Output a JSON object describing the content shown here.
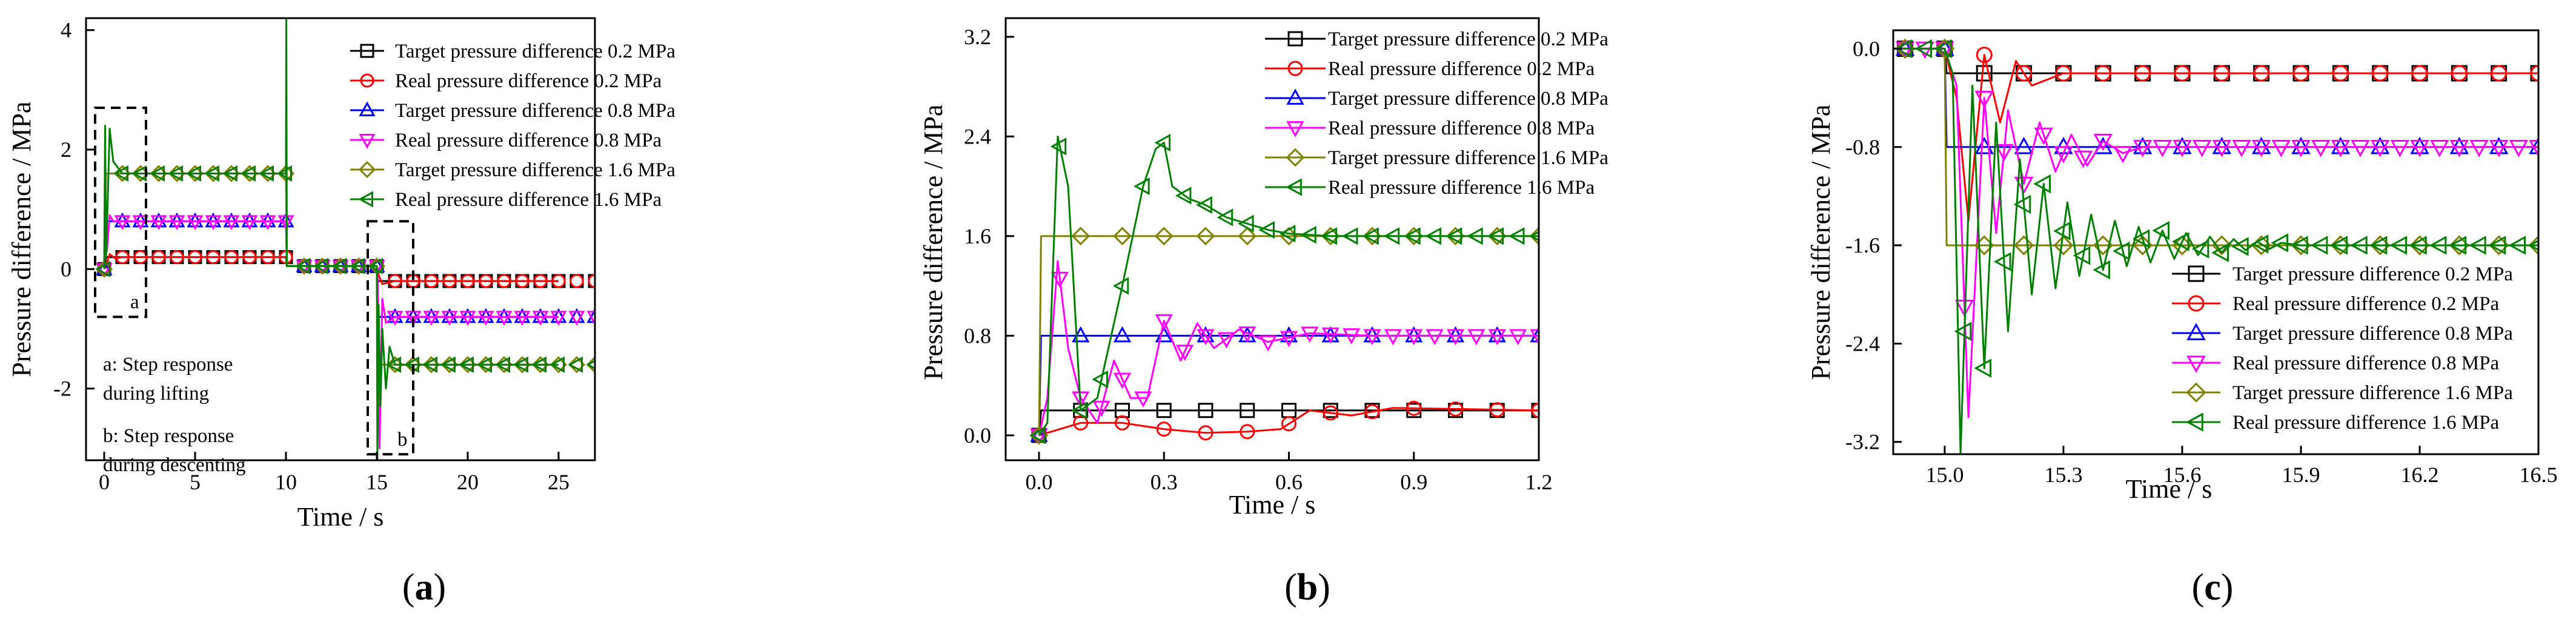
{
  "figure": {
    "panel_labels": [
      "a",
      "b",
      "c"
    ],
    "colors": {
      "target_0_2": "#000000",
      "real_0_2": "#ff0000",
      "target_0_8": "#0000ff",
      "real_0_8": "#ff00ff",
      "target_1_6": "#808000",
      "real_1_6": "#008000"
    }
  },
  "chart_data": [
    {
      "id": "a",
      "type": "line",
      "xlabel": "Time / s",
      "ylabel": "Pressure difference / MPa",
      "xlim": [
        -1,
        27
      ],
      "ylim": [
        -3.2,
        4.2
      ],
      "xticks": [
        0,
        5,
        10,
        15,
        20,
        25
      ],
      "yticks": [
        -2,
        0,
        2,
        4
      ],
      "legend": {
        "position": "top-right",
        "entries": [
          "Target pressure difference 0.2 MPa",
          "Real pressure difference 0.2 MPa",
          "Target pressure difference 0.8 MPa",
          "Real pressure difference 0.8 MPa",
          "Target pressure difference 1.6 MPa",
          "Real pressure difference 1.6 MPa"
        ]
      },
      "annotations": {
        "box_a_label": "a",
        "box_b_label": "b",
        "note_a_line1": "a: Step response",
        "note_a_line2": "during lifting",
        "note_b_line1": "b: Step response",
        "note_b_line2": "during descenting"
      },
      "regions": {
        "a": [
          -0.5,
          2.3,
          -0.8,
          2.7
        ],
        "b": [
          14.5,
          17.0,
          -3.1,
          0.8
        ]
      },
      "series": [
        {
          "name": "Target pressure difference 0.2 MPa",
          "key": "target_0_2",
          "marker": "square",
          "marker_every": 1,
          "x": [
            0,
            0.1,
            10,
            10.05,
            15,
            15.05,
            25
          ],
          "y": [
            0,
            0.2,
            0.2,
            0.05,
            0.05,
            -0.2,
            -0.2
          ]
        },
        {
          "name": "Real pressure difference 0.2 MPa",
          "key": "real_0_2",
          "marker": "circle",
          "marker_every": 1,
          "x": [
            0,
            0.1,
            0.3,
            0.6,
            1,
            10,
            10.05,
            15,
            15.1,
            15.3,
            16,
            25
          ],
          "y": [
            0,
            0.05,
            0.25,
            0.18,
            0.2,
            0.2,
            0.05,
            0.05,
            -0.1,
            -0.25,
            -0.2,
            -0.2
          ]
        },
        {
          "name": "Target pressure difference 0.8 MPa",
          "key": "target_0_8",
          "marker": "triangle-up",
          "marker_every": 1,
          "x": [
            0,
            0.1,
            10,
            10.05,
            15,
            15.05,
            25
          ],
          "y": [
            0,
            0.8,
            0.8,
            0.05,
            0.05,
            -0.8,
            -0.8
          ]
        },
        {
          "name": "Real pressure difference 0.8 MPa",
          "key": "real_0_8",
          "marker": "triangle-down",
          "marker_every": 1,
          "x": [
            0,
            0.05,
            0.15,
            0.3,
            0.5,
            10,
            10.05,
            15,
            15.05,
            15.15,
            15.3,
            15.5,
            16,
            25
          ],
          "y": [
            0,
            1.4,
            0.3,
            0.9,
            0.8,
            0.8,
            0.05,
            0.05,
            -0.2,
            -3.0,
            -0.5,
            -0.9,
            -0.8,
            -0.8
          ]
        },
        {
          "name": "Target pressure difference 1.6 MPa",
          "key": "target_1_6",
          "marker": "diamond",
          "marker_every": 1,
          "x": [
            0,
            0.1,
            10,
            10.05,
            15,
            15.05,
            25
          ],
          "y": [
            0,
            1.6,
            1.6,
            0.05,
            0.05,
            -1.6,
            -1.6
          ]
        },
        {
          "name": "Real pressure difference 1.6 MPa",
          "key": "real_1_6",
          "marker": "triangle-left",
          "marker_every": 1,
          "x": [
            0,
            0.05,
            0.1,
            0.2,
            0.3,
            0.5,
            1,
            10,
            10.02,
            10.05,
            15,
            15.03,
            15.1,
            15.2,
            15.3,
            15.5,
            15.7,
            16,
            25
          ],
          "y": [
            0,
            2.4,
            0.2,
            1.2,
            2.35,
            1.8,
            1.6,
            1.6,
            4.2,
            0.05,
            0.05,
            -3.2,
            -0.6,
            -2.3,
            -1.0,
            -2.0,
            -1.3,
            -1.6,
            -1.6
          ]
        }
      ]
    },
    {
      "id": "b",
      "type": "line",
      "xlabel": "Time / s",
      "ylabel": "Pressure difference / MPa",
      "xlim": [
        -0.08,
        1.2
      ],
      "ylim": [
        -0.2,
        3.35
      ],
      "xticks": [
        0.0,
        0.3,
        0.6,
        0.9,
        1.2
      ],
      "xticklabels": [
        "0.0",
        "0.3",
        "0.6",
        "0.9",
        "1.2"
      ],
      "yticks": [
        0.0,
        0.8,
        1.6,
        2.4,
        3.2
      ],
      "yticklabels": [
        "0.0",
        "0.8",
        "1.6",
        "2.4",
        "3.2"
      ],
      "legend": {
        "position": "top-right",
        "entries": [
          "Target pressure difference 0.2 MPa",
          "Real pressure difference 0.2 MPa",
          "Target pressure difference 0.8 MPa",
          "Real pressure difference 0.8 MPa",
          "Target pressure difference 1.6 MPa",
          "Real pressure difference 1.6 MPa"
        ]
      },
      "series": [
        {
          "name": "Target pressure difference 0.2 MPa",
          "key": "target_0_2",
          "marker": "square",
          "marker_every": 0.1,
          "x": [
            0,
            0.005,
            1.2
          ],
          "y": [
            0,
            0.2,
            0.2
          ]
        },
        {
          "name": "Real pressure difference 0.2 MPa",
          "key": "real_0_2",
          "marker": "circle",
          "marker_every": 0.1,
          "x": [
            0,
            0.05,
            0.1,
            0.2,
            0.3,
            0.4,
            0.5,
            0.58,
            0.65,
            0.75,
            0.85,
            1.2
          ],
          "y": [
            0,
            0.05,
            0.1,
            0.1,
            0.05,
            0.02,
            0.03,
            0.05,
            0.2,
            0.16,
            0.22,
            0.2
          ]
        },
        {
          "name": "Target pressure difference 0.8 MPa",
          "key": "target_0_8",
          "marker": "triangle-up",
          "marker_every": 0.1,
          "x": [
            0,
            0.005,
            1.2
          ],
          "y": [
            0,
            0.8,
            0.8
          ]
        },
        {
          "name": "Real pressure difference 0.8 MPa",
          "key": "real_0_8",
          "marker": "triangle-down",
          "marker_every": 0.05,
          "x": [
            0,
            0.02,
            0.045,
            0.07,
            0.1,
            0.14,
            0.18,
            0.22,
            0.26,
            0.3,
            0.34,
            0.38,
            0.42,
            0.48,
            0.55,
            0.65,
            0.8,
            1.2
          ],
          "y": [
            0,
            0.3,
            1.4,
            0.7,
            0.3,
            0.1,
            0.6,
            0.3,
            0.3,
            0.92,
            0.6,
            0.9,
            0.7,
            0.85,
            0.75,
            0.82,
            0.8,
            0.8
          ]
        },
        {
          "name": "Target pressure difference 1.6 MPa",
          "key": "target_1_6",
          "marker": "diamond",
          "marker_every": 0.1,
          "x": [
            0,
            0.005,
            1.2
          ],
          "y": [
            0,
            1.6,
            1.6
          ]
        },
        {
          "name": "Real pressure difference 1.6 MPa",
          "key": "real_1_6",
          "marker": "triangle-left",
          "marker_every": 0.05,
          "x": [
            0,
            0.02,
            0.045,
            0.07,
            0.1,
            0.14,
            0.2,
            0.25,
            0.28,
            0.3,
            0.32,
            0.36,
            0.4,
            0.45,
            0.5,
            0.55,
            0.6,
            0.7,
            0.8,
            1.2
          ],
          "y": [
            0,
            0.1,
            2.4,
            2.0,
            0.2,
            0.3,
            1.2,
            2.0,
            2.3,
            2.35,
            2.0,
            1.9,
            1.85,
            1.75,
            1.7,
            1.65,
            1.62,
            1.6,
            1.6,
            1.6
          ]
        }
      ]
    },
    {
      "id": "c",
      "type": "line",
      "xlabel": "Time / s",
      "ylabel": "Pressure difference / MPa",
      "xlim": [
        14.87,
        16.5
      ],
      "ylim": [
        -3.3,
        0.15
      ],
      "xticks": [
        15.0,
        15.3,
        15.6,
        15.9,
        16.2,
        16.5
      ],
      "xticklabels": [
        "15.0",
        "15.3",
        "15.6",
        "15.9",
        "16.2",
        "16.5"
      ],
      "yticks": [
        0.0,
        -0.8,
        -1.6,
        -2.4,
        -3.2
      ],
      "yticklabels": [
        "0.0",
        "-0.8",
        "-1.6",
        "-2.4",
        "-3.2"
      ],
      "legend": {
        "position": "bottom-right",
        "entries": [
          "Target pressure difference 0.2 MPa",
          "Real pressure difference 0.2 MPa",
          "Target pressure difference 0.8 MPa",
          "Real pressure difference 0.8 MPa",
          "Target pressure difference 1.6 MPa",
          "Real pressure difference 1.6 MPa"
        ]
      },
      "series": [
        {
          "name": "Target pressure difference 0.2 MPa",
          "key": "target_0_2",
          "marker": "square",
          "marker_every": 0.1,
          "x": [
            14.87,
            15.0,
            15.005,
            16.5
          ],
          "y": [
            0.0,
            0.0,
            -0.2,
            -0.2
          ]
        },
        {
          "name": "Real pressure difference 0.2 MPa",
          "key": "real_0_2",
          "marker": "circle",
          "marker_every": 0.1,
          "x": [
            14.87,
            15.0,
            15.03,
            15.06,
            15.1,
            15.14,
            15.18,
            15.22,
            15.3,
            15.4,
            16.5
          ],
          "y": [
            0.0,
            0.0,
            -0.4,
            -1.4,
            -0.05,
            -0.6,
            -0.1,
            -0.3,
            -0.2,
            -0.2,
            -0.2
          ]
        },
        {
          "name": "Target pressure difference 0.8 MPa",
          "key": "target_0_8",
          "marker": "triangle-up",
          "marker_every": 0.1,
          "x": [
            14.87,
            15.0,
            15.005,
            16.5
          ],
          "y": [
            0.0,
            0.0,
            -0.8,
            -0.8
          ]
        },
        {
          "name": "Real pressure difference 0.8 MPa",
          "key": "real_0_8",
          "marker": "triangle-down",
          "marker_every": 0.05,
          "x": [
            14.87,
            15.0,
            15.03,
            15.06,
            15.1,
            15.13,
            15.16,
            15.2,
            15.24,
            15.28,
            15.32,
            15.36,
            15.4,
            15.45,
            15.5,
            15.6,
            16.5
          ],
          "y": [
            0.0,
            0.0,
            -0.3,
            -3.0,
            -0.4,
            -1.5,
            -0.5,
            -1.1,
            -0.6,
            -1.0,
            -0.7,
            -0.95,
            -0.75,
            -0.85,
            -0.8,
            -0.8,
            -0.8
          ]
        },
        {
          "name": "Target pressure difference 1.6 MPa",
          "key": "target_1_6",
          "marker": "diamond",
          "marker_every": 0.1,
          "x": [
            14.87,
            15.0,
            15.005,
            16.5
          ],
          "y": [
            0.0,
            0.0,
            -1.6,
            -1.6
          ]
        },
        {
          "name": "Real pressure difference 1.6 MPa",
          "key": "real_1_6",
          "marker": "triangle-left",
          "marker_every": 0.05,
          "x": [
            14.87,
            15.0,
            15.02,
            15.04,
            15.07,
            15.1,
            15.13,
            15.16,
            15.19,
            15.22,
            15.25,
            15.28,
            15.31,
            15.34,
            15.37,
            15.4,
            15.43,
            15.46,
            15.49,
            15.52,
            15.55,
            15.58,
            15.61,
            15.64,
            15.67,
            15.7,
            15.73,
            15.76,
            15.79,
            15.82,
            15.85,
            15.9,
            16.5
          ],
          "y": [
            0.0,
            0.0,
            -0.2,
            -3.3,
            -0.3,
            -2.6,
            -0.6,
            -2.3,
            -0.9,
            -2.0,
            -1.1,
            -1.95,
            -1.25,
            -1.85,
            -1.35,
            -1.8,
            -1.4,
            -1.77,
            -1.45,
            -1.74,
            -1.48,
            -1.71,
            -1.5,
            -1.68,
            -1.53,
            -1.66,
            -1.55,
            -1.64,
            -1.57,
            -1.63,
            -1.58,
            -1.6,
            -1.6
          ]
        }
      ]
    }
  ]
}
